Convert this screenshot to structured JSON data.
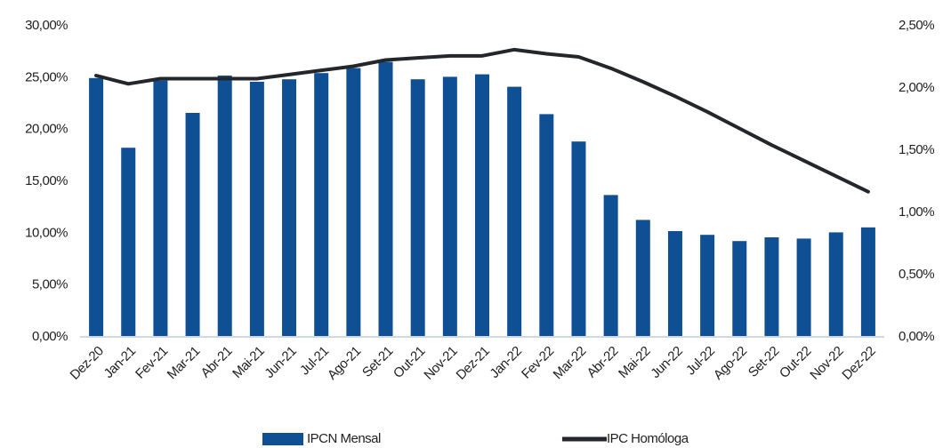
{
  "chart_data": {
    "type": "bar-line",
    "categories": [
      "Dez-20",
      "Jan-21",
      "Fev-21",
      "Mar-21",
      "Abr-21",
      "Mai-21",
      "Jun-21",
      "Jul-21",
      "Ago-21",
      "Set-21",
      "Out-21",
      "Nov-21",
      "Dez-21",
      "Jan-22",
      "Fev-22",
      "Mar-22",
      "Abr-22",
      "Mai-22",
      "Jun-22",
      "Jul-22",
      "Ago-22",
      "Set-22",
      "Out-22",
      "Nov-22",
      "Dez-22"
    ],
    "series": [
      {
        "name": "IPCN Mensal",
        "type": "bar",
        "axis": "y2",
        "color": "#0f4f94",
        "values": [
          2.08,
          1.52,
          2.06,
          1.8,
          2.1,
          2.05,
          2.07,
          2.12,
          2.16,
          2.21,
          2.07,
          2.09,
          2.11,
          2.01,
          1.79,
          1.57,
          1.14,
          0.94,
          0.85,
          0.82,
          0.77,
          0.8,
          0.79,
          0.84,
          0.88
        ]
      },
      {
        "name": "IPC Homóloga",
        "type": "line",
        "axis": "y",
        "color": "#23272b",
        "values": [
          25.2,
          24.4,
          24.9,
          24.9,
          24.9,
          24.9,
          25.3,
          25.7,
          26.1,
          26.7,
          26.9,
          27.1,
          27.1,
          27.7,
          27.3,
          27.0,
          25.9,
          24.6,
          23.2,
          21.7,
          20.1,
          18.5,
          17.0,
          15.5,
          14.0
        ]
      }
    ],
    "ylim": [
      0,
      30
    ],
    "yticks": [
      {
        "value": 0,
        "label": "0,00%"
      },
      {
        "value": 5,
        "label": "5,00%"
      },
      {
        "value": 10,
        "label": "10,00%"
      },
      {
        "value": 15,
        "label": "15,00%"
      },
      {
        "value": 20,
        "label": "20,00%"
      },
      {
        "value": 25,
        "label": "25,00%"
      },
      {
        "value": 30,
        "label": "30,00%"
      }
    ],
    "y2lim": [
      0,
      2.5
    ],
    "y2ticks": [
      {
        "value": 0,
        "label": "0,00%"
      },
      {
        "value": 0.5,
        "label": "0,50%"
      },
      {
        "value": 1,
        "label": "1,00%"
      },
      {
        "value": 1.5,
        "label": "1,50%"
      },
      {
        "value": 2,
        "label": "2,00%"
      },
      {
        "value": 2.5,
        "label": "2,50%"
      }
    ],
    "legend": "bottom"
  }
}
